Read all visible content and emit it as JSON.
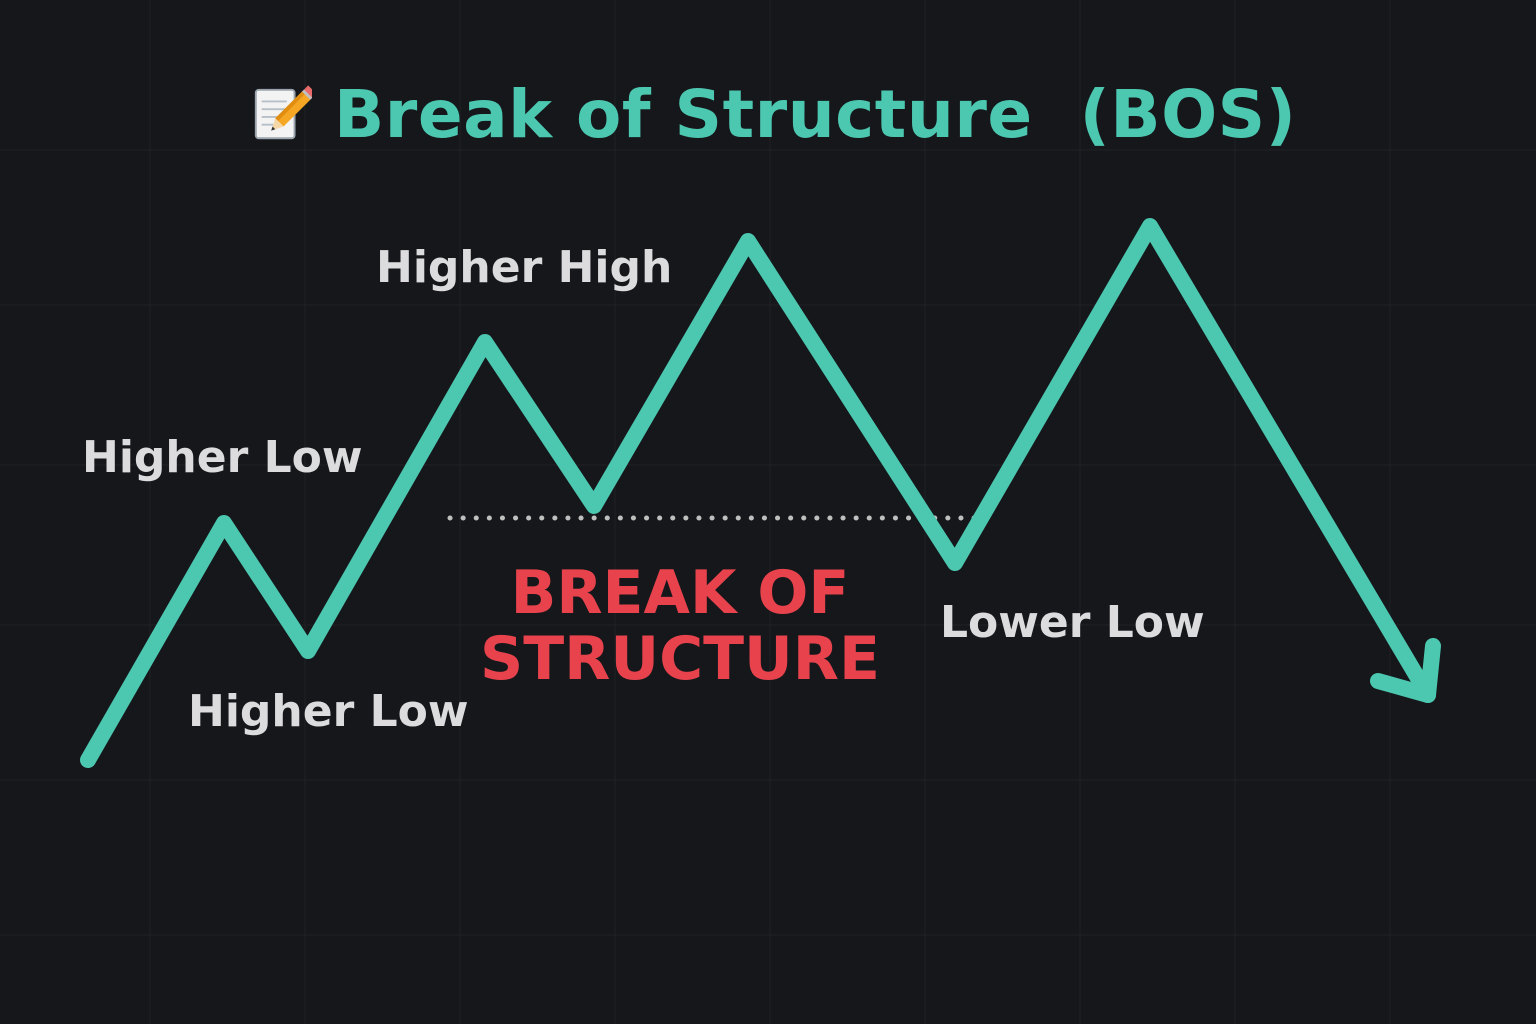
{
  "title": {
    "icon": "memo-pencil-icon",
    "text": "Break of Structure  (BOS)"
  },
  "labels": {
    "higher_low_upper": "Higher Low",
    "higher_low_lower": "Higher Low",
    "higher_high": "Higher High",
    "lower_low": "Lower Low"
  },
  "break_label": {
    "line1": "BREAK OF",
    "line2": "STRUCTURE"
  },
  "colors": {
    "background": "#15171b",
    "price_line": "#4cc7b0",
    "title": "#4cc7b0",
    "label_text": "#dcdcde",
    "break_text": "#e8434d",
    "structure_line": "#bfbfbf"
  }
}
